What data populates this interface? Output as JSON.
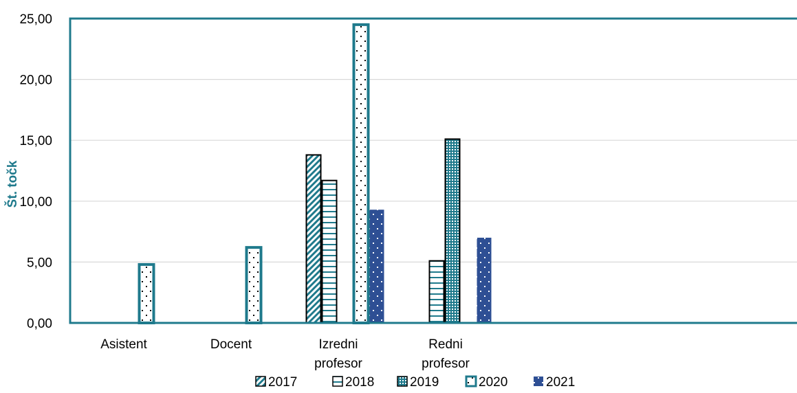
{
  "chart_data": {
    "type": "bar",
    "title": "",
    "xlabel": "",
    "ylabel": "Št. točk",
    "ylim": [
      0,
      25
    ],
    "yticks": [
      "0,00",
      "5,00",
      "10,00",
      "15,00",
      "20,00",
      "25,00"
    ],
    "categories": [
      [
        "Asistent"
      ],
      [
        "Docent"
      ],
      [
        "Izredni",
        "profesor"
      ],
      [
        "Redni",
        "profesor"
      ]
    ],
    "series": [
      {
        "name": "2017",
        "values": [
          0,
          0,
          13.8,
          0
        ],
        "pattern": "diagonal",
        "color": "#1f7a8c"
      },
      {
        "name": "2018",
        "values": [
          0,
          0,
          11.7,
          5.1
        ],
        "pattern": "horizontal",
        "color": "#1f7a8c"
      },
      {
        "name": "2019",
        "values": [
          0,
          0,
          0,
          15.1
        ],
        "pattern": "grid",
        "color": "#1f7a8c"
      },
      {
        "name": "2020",
        "values": [
          4.8,
          6.2,
          24.5,
          0
        ],
        "pattern": "dots",
        "color": "#1f7a8c"
      },
      {
        "name": "2021",
        "values": [
          0,
          0,
          9.3,
          7.0
        ],
        "pattern": "solid-dots",
        "color": "#2e4f94"
      }
    ],
    "grid": true,
    "legend_position": "bottom"
  },
  "colors": {
    "axis_frame": "#1f7a8c",
    "ylabel": "#1f7a8c",
    "gridline": "#d9d9d9",
    "bar_outline": "#000000",
    "bar_2020_outline": "#1f7a8c",
    "bar_2021_fill": "#2e4f94"
  }
}
